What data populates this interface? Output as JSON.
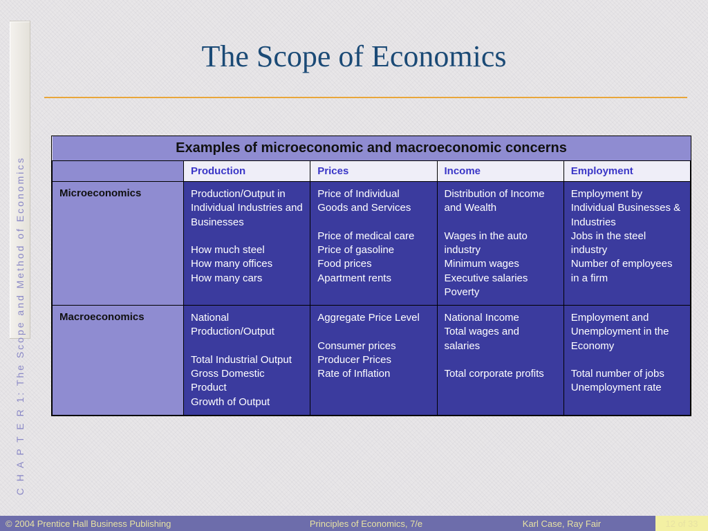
{
  "sidebar": {
    "label": "C H A P T E R  1:  The Scope and Method of Economics"
  },
  "title": "The Scope of Economics",
  "colors": {
    "title": "#1b4a76",
    "divider": "#e9a63a",
    "header_bg": "#8f8cd1",
    "colhead_bg": "#efeef8",
    "colhead_text": "#3a36c7",
    "cell_bg": "#3b3b9e",
    "cell_text": "#ffffff",
    "footer_bg": "#6d6dab",
    "footer_text": "#e7e2a3",
    "page_badge_bg": "#f3f0a3"
  },
  "table": {
    "caption": "Examples of microeconomic and macroeconomic concerns",
    "columns": [
      "Production",
      "Prices",
      "Income",
      "Employment"
    ],
    "rows": [
      {
        "label": "Microeconomics",
        "cells": [
          "Production/Output in Individual Industries and Businesses\n\nHow much steel\nHow many offices\nHow many cars",
          "Price of Individual Goods and Services\n\nPrice of medical care\nPrice of gasoline\nFood prices\nApartment rents",
          "Distribution of Income and Wealth\n\nWages in the auto industry\nMinimum wages\nExecutive salaries\nPoverty",
          "Employment by Individual Businesses & Industries\nJobs in the steel industry\nNumber of employees in a firm"
        ]
      },
      {
        "label": "Macroeconomics",
        "cells": [
          "National Production/Output\n\nTotal Industrial Output\nGross Domestic Product\nGrowth of Output",
          "Aggregate Price Level\n\nConsumer prices\nProducer Prices\nRate of Inflation",
          "National Income\nTotal wages and salaries\n\nTotal corporate profits",
          "Employment and Unemployment in the Economy\n\nTotal number of jobs\nUnemployment rate"
        ]
      }
    ]
  },
  "footer": {
    "copyright": "© 2004 Prentice Hall Business Publishing",
    "book": "Principles of Economics, 7/e",
    "authors": "Karl Case, Ray Fair",
    "page": "12 of 33"
  }
}
